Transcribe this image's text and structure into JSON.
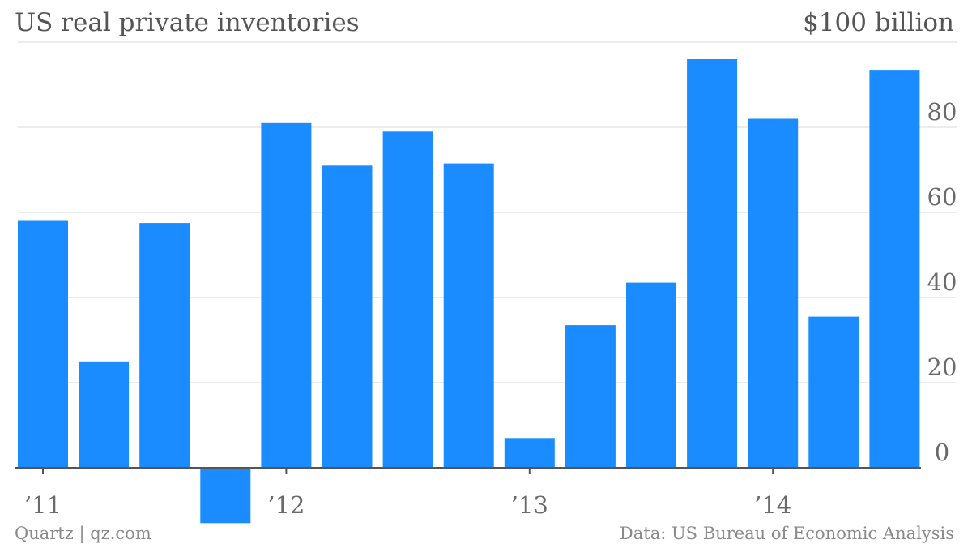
{
  "header": {
    "title": "US real private inventories",
    "unit": "$100 billion"
  },
  "footer": {
    "source_left": "Quartz | qz.com",
    "source_right": "Data: US Bureau of Economic Analysis"
  },
  "colors": {
    "bar": "#1a8cff",
    "grid": "#e6e6e6",
    "axis": "#555555"
  },
  "chart_data": {
    "type": "bar",
    "title": "US real private inventories",
    "ylabel": "$100 billion",
    "categories": [
      "2011 Q1",
      "2011 Q2",
      "2011 Q3",
      "2011 Q4",
      "2012 Q1",
      "2012 Q2",
      "2012 Q3",
      "2012 Q4",
      "2013 Q1",
      "2013 Q2",
      "2013 Q3",
      "2013 Q4",
      "2014 Q1",
      "2014 Q2",
      "2014 Q3"
    ],
    "values": [
      58,
      25,
      57.5,
      -13,
      81,
      71,
      79,
      71.5,
      7,
      33.5,
      43.5,
      96,
      82,
      35.5,
      93.5
    ],
    "x_tick_labels": [
      "’11",
      "’12",
      "’13",
      "’14"
    ],
    "y_ticks": [
      0,
      20,
      40,
      60,
      80
    ],
    "ylim": [
      -13,
      100
    ],
    "grid": true,
    "y_axis_position": "right"
  }
}
